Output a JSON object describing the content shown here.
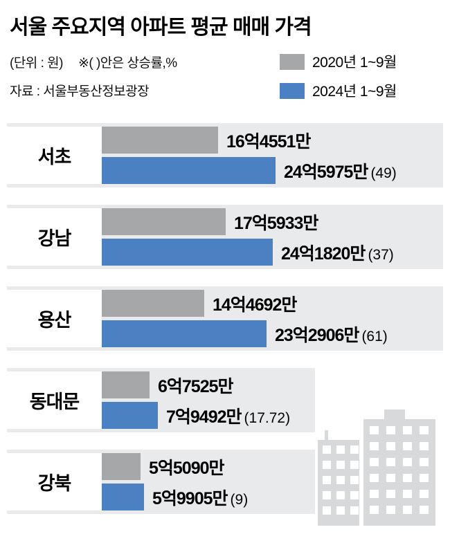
{
  "header": {
    "title": "서울 주요지역 아파트 평균 매매 가격",
    "unit_note": "(단위 : 원)",
    "paren_note": "※( )안은 상승률,%",
    "source": "자료 : 서울부동산정보광장"
  },
  "colors": {
    "band_background": "#e8eaeb",
    "bar_2020": "#a5a7a9",
    "bar_2024": "#4b81c2",
    "building_silhouette": "#d7d9da"
  },
  "chart_data": {
    "type": "bar",
    "orientation": "horizontal",
    "title": "서울 주요지역 아파트 평균 매매 가격",
    "value_unit": "만원",
    "legend_position": "top-right",
    "categories": [
      "서초",
      "강남",
      "용산",
      "동대문",
      "강북"
    ],
    "series": [
      {
        "name": "2020년 1~9월",
        "color": "#a5a7a9",
        "values": [
          164551,
          175933,
          144692,
          67525,
          55090
        ],
        "labels": [
          "16억4551만",
          "17억5933만",
          "14억4692만",
          "6억7525만",
          "5억5090만"
        ]
      },
      {
        "name": "2024년 1~9월",
        "color": "#4b81c2",
        "values": [
          245975,
          241820,
          232906,
          79492,
          59905
        ],
        "labels": [
          "24억5975만",
          "24억1820만",
          "23억2906만",
          "7억9492만",
          "5억9905만"
        ],
        "growth_pct": [
          49,
          37,
          61,
          17.72,
          9
        ],
        "growth_labels": [
          "(49)",
          "(37)",
          "(61)",
          "(17.72)",
          "(9)"
        ]
      }
    ]
  }
}
